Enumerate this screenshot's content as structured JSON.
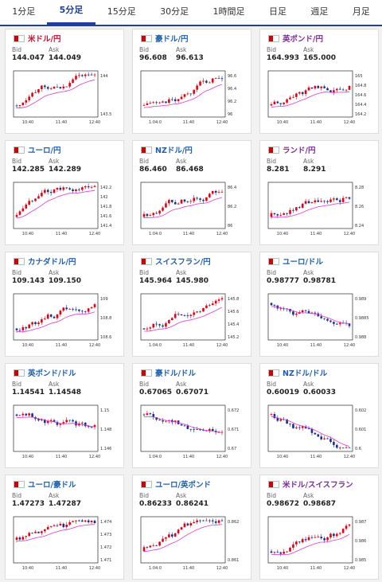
{
  "tabs": [
    {
      "label": "1分足",
      "active": false
    },
    {
      "label": "5分足",
      "active": true
    },
    {
      "label": "15分足",
      "active": false
    },
    {
      "label": "30分足",
      "active": false
    },
    {
      "label": "1時間足",
      "active": false
    },
    {
      "label": "日足",
      "active": false
    },
    {
      "label": "週足",
      "active": false
    },
    {
      "label": "月足",
      "active": false
    }
  ],
  "labels": {
    "bid": "Bid",
    "ask": "Ask"
  },
  "colors": {
    "up": "#e60012",
    "down": "#1a2e8c",
    "ma": "#d63bd6",
    "title_red": "#c8102e",
    "title_blue": "#1f5fb0",
    "title_purple": "#7a2a9a"
  },
  "cards": [
    {
      "title": "米ドル/円",
      "title_color": "title_red",
      "bid": "144.047",
      "ask": "144.049",
      "x_ticks": [
        "10:40",
        "11:40",
        "12:40"
      ],
      "y_ticks": [
        "144",
        "143.5"
      ],
      "trend": "up"
    },
    {
      "title": "豪ドル/円",
      "title_color": "title_blue",
      "bid": "96.608",
      "ask": "96.613",
      "x_ticks": [
        "1:04:0",
        "11:40",
        "12:40"
      ],
      "y_ticks": [
        "96.6",
        "96.4",
        "96.2",
        "96"
      ],
      "trend": "up"
    },
    {
      "title": "英ポンド/円",
      "title_color": "title_purple",
      "bid": "164.993",
      "ask": "165.000",
      "x_ticks": [
        "10:40",
        "11:40",
        "12:40"
      ],
      "y_ticks": [
        "165",
        "164.8",
        "164.6",
        "164.4",
        "164.2"
      ],
      "trend": "up"
    },
    {
      "title": "ユーロ/円",
      "title_color": "title_blue",
      "bid": "142.285",
      "ask": "142.289",
      "x_ticks": [
        "10:40",
        "11:40",
        "12:40"
      ],
      "y_ticks": [
        "142.2",
        "142",
        "141.8",
        "141.6",
        "141.4"
      ],
      "trend": "up"
    },
    {
      "title": "NZドル/円",
      "title_color": "title_blue",
      "bid": "86.460",
      "ask": "86.468",
      "x_ticks": [
        "1:04:0",
        "11:40",
        "12:40"
      ],
      "y_ticks": [
        "86.4",
        "86.2",
        "86"
      ],
      "trend": "up"
    },
    {
      "title": "ランド/円",
      "title_color": "title_purple",
      "bid": "8.281",
      "ask": "8.291",
      "x_ticks": [
        "10:40",
        "11:40",
        "12:40"
      ],
      "y_ticks": [
        "8.28",
        "8.26",
        "8.24"
      ],
      "trend": "up"
    },
    {
      "title": "カナダドル/円",
      "title_color": "title_blue",
      "bid": "109.143",
      "ask": "109.150",
      "x_ticks": [
        "10:40",
        "11:40",
        "12:40"
      ],
      "y_ticks": [
        "109",
        "108.8",
        "108.6"
      ],
      "trend": "up"
    },
    {
      "title": "スイスフラン/円",
      "title_color": "title_blue",
      "bid": "145.964",
      "ask": "145.980",
      "x_ticks": [
        "1:04:0",
        "11:40",
        "12:40"
      ],
      "y_ticks": [
        "145.8",
        "145.6",
        "145.4",
        "145.2"
      ],
      "trend": "up"
    },
    {
      "title": "ユーロ/ドル",
      "title_color": "title_blue",
      "bid": "0.98777",
      "ask": "0.98781",
      "x_ticks": [
        "10:40",
        "11:40",
        "12:40"
      ],
      "y_ticks": [
        "0.989",
        "0.9885",
        "0.988"
      ],
      "trend": "down"
    },
    {
      "title": "英ポンド/ドル",
      "title_color": "title_blue",
      "bid": "1.14541",
      "ask": "1.14548",
      "x_ticks": [
        "10:40",
        "11:40",
        "12:40"
      ],
      "y_ticks": [
        "1.15",
        "1.148",
        "1.146"
      ],
      "trend": "down"
    },
    {
      "title": "豪ドル/ドル",
      "title_color": "title_blue",
      "bid": "0.67065",
      "ask": "0.67071",
      "x_ticks": [
        "1:04:0",
        "11:40",
        "12:40"
      ],
      "y_ticks": [
        "0.672",
        "0.671",
        "0.67"
      ],
      "trend": "down"
    },
    {
      "title": "NZドル/ドル",
      "title_color": "title_blue",
      "bid": "0.60019",
      "ask": "0.60033",
      "x_ticks": [
        "10:40",
        "11:40",
        "12:40"
      ],
      "y_ticks": [
        "0.602",
        "0.601",
        "0.6"
      ],
      "trend": "down"
    },
    {
      "title": "ユーロ/豪ドル",
      "title_color": "title_blue",
      "bid": "1.47273",
      "ask": "1.47287",
      "x_ticks": [
        "10:40",
        "11:40",
        "12:40"
      ],
      "y_ticks": [
        "1.474",
        "1.473",
        "1.472",
        "1.471"
      ],
      "trend": "flat"
    },
    {
      "title": "ユーロ/英ポンド",
      "title_color": "title_blue",
      "bid": "0.86233",
      "ask": "0.86241",
      "x_ticks": [
        "1:04:0",
        "11:40",
        "12:40"
      ],
      "y_ticks": [
        "0.862",
        "0.861"
      ],
      "trend": "up"
    },
    {
      "title": "米ドル/スイスフラン",
      "title_color": "title_purple",
      "bid": "0.98672",
      "ask": "0.98687",
      "x_ticks": [
        "10:40",
        "11:40",
        "12:40"
      ],
      "y_ticks": [
        "0.987",
        "0.986",
        "0.985"
      ],
      "trend": "up"
    }
  ]
}
